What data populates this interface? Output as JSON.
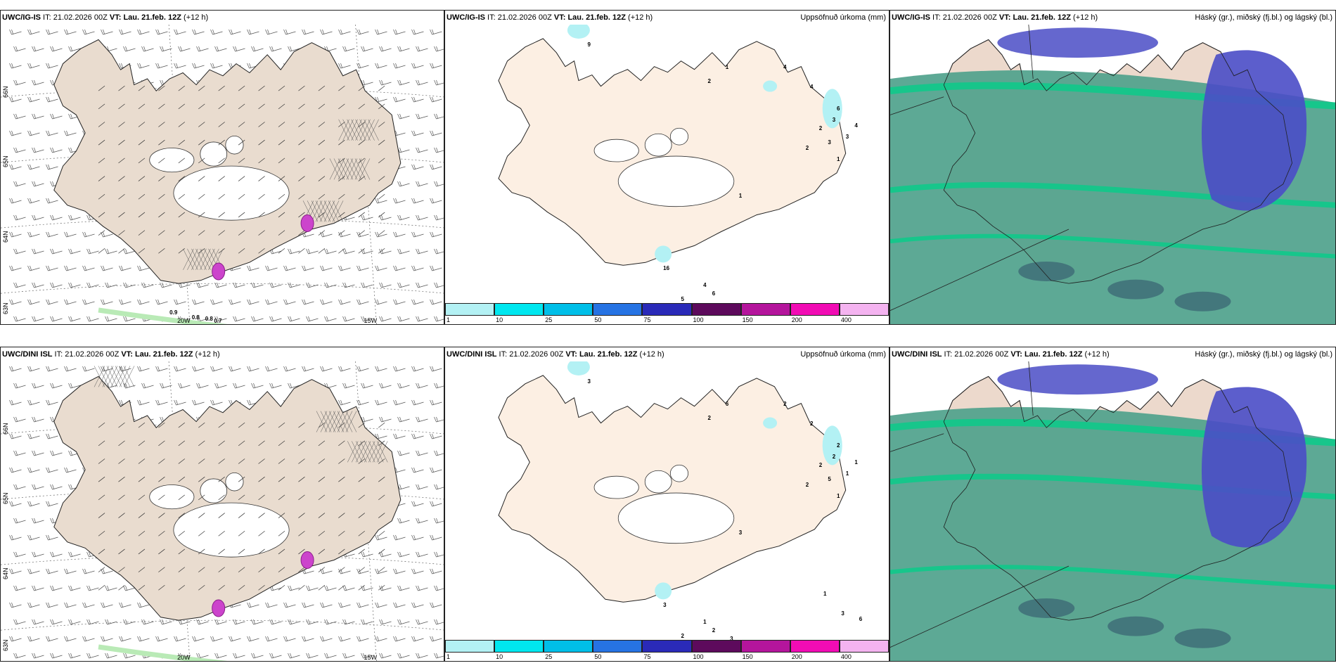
{
  "colors": {
    "land_panel1": "#e9dccf",
    "land_panel2": "#fcefe3",
    "land_panel3": "#ecd9cc",
    "low_cloud": "#4fa28c",
    "mid_cloud": "#10c98a",
    "high_cloud": "#4a4cc6",
    "ice_hatch": "#555555",
    "precip_light": "#b3f1f4"
  },
  "rows": [
    {
      "model": "UWC/IG-IS",
      "panels": [
        {
          "kind": "wind",
          "it_label": "IT:",
          "it": "21.02.2026 00Z",
          "vt_label": "VT:",
          "vt": "Lau. 21.feb. 12Z",
          "lead": "(+12 h)",
          "right_title": "",
          "lon_labels": [
            "20W",
            "15W"
          ],
          "lat_labels": [
            "66N",
            "65N",
            "64N",
            "63N"
          ],
          "precip_numbers": [
            "0.9",
            "0.8",
            "0.8",
            "0.7"
          ]
        },
        {
          "kind": "precip",
          "it_label": "IT:",
          "it": "21.02.2026 00Z",
          "vt_label": "VT:",
          "vt": "Lau. 21.feb. 12Z",
          "lead": "(+12 h)",
          "right_title": "Uppsöfnuð úrkoma (mm)",
          "map_numbers": [
            "9",
            "1",
            "2",
            "4",
            "4",
            "6",
            "3",
            "2",
            "3",
            "2",
            "4",
            "3",
            "1",
            "1",
            "6",
            "4",
            "5",
            "16"
          ]
        },
        {
          "kind": "cloud",
          "it_label": "IT:",
          "it": "21.02.2026 00Z",
          "vt_label": "VT:",
          "vt": "Lau. 21.feb. 12Z",
          "lead": "(+12 h)",
          "right_title": "Háský (gr.), miðský (fj.bl.) og lágský (bl.)"
        }
      ]
    },
    {
      "model": "UWC/DINI ISL",
      "panels": [
        {
          "kind": "wind",
          "it_label": "IT:",
          "it": "21.02.2026 00Z",
          "vt_label": "VT:",
          "vt": "Lau. 21.feb. 12Z",
          "lead": "(+12 h)",
          "right_title": "",
          "lon_labels": [
            "20W",
            "15W"
          ],
          "lat_labels": [
            "66N",
            "65N",
            "64N",
            "63N"
          ],
          "precip_numbers": []
        },
        {
          "kind": "precip",
          "it_label": "IT:",
          "it": "21.02.2026 00Z",
          "vt_label": "VT:",
          "vt": "Lau. 21.feb. 12Z",
          "lead": "(+12 h)",
          "right_title": "Uppsöfnuð úrkoma (mm)",
          "map_numbers": [
            "3",
            "6",
            "2",
            "2",
            "2",
            "2",
            "2",
            "2",
            "5",
            "2",
            "1",
            "1",
            "1",
            "3",
            "2",
            "1",
            "2",
            "3",
            "3",
            "1",
            "3",
            "6"
          ]
        },
        {
          "kind": "cloud",
          "it_label": "IT:",
          "it": "21.02.2026 00Z",
          "vt_label": "VT:",
          "vt": "Lau. 21.feb. 12Z",
          "lead": "(+12 h)",
          "right_title": "Háský (gr.), miðský (fj.bl.) og lágský (bl.)"
        }
      ]
    }
  ],
  "precip_colorbar": {
    "ticks": [
      "1",
      "10",
      "25",
      "50",
      "75",
      "100",
      "150",
      "200",
      "400"
    ],
    "colors": [
      "#b3f1f4",
      "#00e7ef",
      "#00bfe8",
      "#2673e3",
      "#2a2ab8",
      "#5d0a5c",
      "#b4159c",
      "#f10cb4",
      "#f4b3f0"
    ]
  }
}
